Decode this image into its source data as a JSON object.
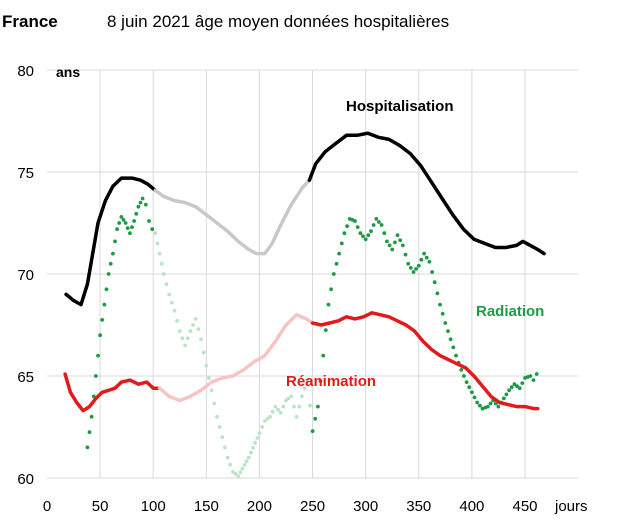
{
  "header": {
    "country": "France",
    "title": "8 juin 2021 âge moyen données hospitalières"
  },
  "chart_data": {
    "type": "line",
    "title": "8 juin 2021 âge moyen données hospitalières",
    "xlabel": "jours",
    "ylabel": "ans",
    "xlim": [
      0,
      500
    ],
    "ylim": [
      60,
      80
    ],
    "xticks": [
      0,
      50,
      100,
      150,
      200,
      250,
      300,
      350,
      400,
      450
    ],
    "yticks": [
      60,
      65,
      70,
      75,
      80
    ],
    "grid": true,
    "series": [
      {
        "name": "Hospitalisation",
        "color": "#000000",
        "faded_color": "#c8c8c8",
        "faded_range": [
          105,
          245
        ],
        "points": [
          [
            18,
            69.0
          ],
          [
            25,
            68.7
          ],
          [
            32,
            68.5
          ],
          [
            38,
            69.5
          ],
          [
            43,
            71.0
          ],
          [
            48,
            72.5
          ],
          [
            55,
            73.6
          ],
          [
            62,
            74.3
          ],
          [
            70,
            74.7
          ],
          [
            80,
            74.7
          ],
          [
            88,
            74.6
          ],
          [
            95,
            74.4
          ],
          [
            102,
            74.1
          ],
          [
            110,
            73.8
          ],
          [
            120,
            73.6
          ],
          [
            130,
            73.5
          ],
          [
            140,
            73.3
          ],
          [
            150,
            72.9
          ],
          [
            160,
            72.5
          ],
          [
            170,
            72.1
          ],
          [
            180,
            71.6
          ],
          [
            190,
            71.2
          ],
          [
            197,
            71.0
          ],
          [
            205,
            71.0
          ],
          [
            212,
            71.5
          ],
          [
            220,
            72.4
          ],
          [
            230,
            73.4
          ],
          [
            240,
            74.2
          ],
          [
            247,
            74.6
          ],
          [
            253,
            75.4
          ],
          [
            262,
            76.0
          ],
          [
            272,
            76.4
          ],
          [
            282,
            76.8
          ],
          [
            292,
            76.8
          ],
          [
            302,
            76.9
          ],
          [
            312,
            76.7
          ],
          [
            322,
            76.6
          ],
          [
            332,
            76.3
          ],
          [
            342,
            75.9
          ],
          [
            352,
            75.3
          ],
          [
            362,
            74.5
          ],
          [
            372,
            73.7
          ],
          [
            382,
            72.9
          ],
          [
            392,
            72.2
          ],
          [
            402,
            71.7
          ],
          [
            412,
            71.5
          ],
          [
            422,
            71.3
          ],
          [
            432,
            71.3
          ],
          [
            442,
            71.4
          ],
          [
            448,
            71.6
          ],
          [
            455,
            71.4
          ],
          [
            462,
            71.2
          ],
          [
            468,
            71.0
          ]
        ]
      },
      {
        "name": "Radiation",
        "color": "#1e9a47",
        "faded_color": "#b9e4c6",
        "faded_range": [
          100,
          250
        ],
        "dotted": true,
        "points": [
          [
            38,
            61.5
          ],
          [
            42,
            63.0
          ],
          [
            46,
            65.0
          ],
          [
            50,
            67.0
          ],
          [
            54,
            68.5
          ],
          [
            58,
            70.0
          ],
          [
            62,
            71.0
          ],
          [
            66,
            72.2
          ],
          [
            70,
            72.8
          ],
          [
            74,
            72.5
          ],
          [
            78,
            72.0
          ],
          [
            82,
            72.6
          ],
          [
            86,
            73.3
          ],
          [
            90,
            73.7
          ],
          [
            93,
            73.4
          ],
          [
            96,
            72.6
          ],
          [
            99,
            72.2
          ],
          [
            102,
            72.0
          ],
          [
            106,
            71.0
          ],
          [
            110,
            70.0
          ],
          [
            115,
            69.0
          ],
          [
            120,
            68.2
          ],
          [
            125,
            67.2
          ],
          [
            130,
            66.5
          ],
          [
            135,
            67.2
          ],
          [
            140,
            67.8
          ],
          [
            145,
            66.8
          ],
          [
            150,
            65.5
          ],
          [
            155,
            64.3
          ],
          [
            160,
            63.0
          ],
          [
            165,
            62.0
          ],
          [
            170,
            61.0
          ],
          [
            175,
            60.3
          ],
          [
            180,
            60.1
          ],
          [
            190,
            61.0
          ],
          [
            200,
            62.2
          ],
          [
            205,
            62.8
          ],
          [
            210,
            63.0
          ],
          [
            215,
            63.5
          ],
          [
            220,
            63.2
          ],
          [
            225,
            63.8
          ],
          [
            230,
            64.0
          ],
          [
            235,
            63.0
          ],
          [
            240,
            64.0
          ],
          [
            245,
            64.8
          ],
          [
            250,
            62.3
          ],
          [
            255,
            63.5
          ],
          [
            260,
            66.0
          ],
          [
            265,
            68.5
          ],
          [
            270,
            70.0
          ],
          [
            275,
            71.0
          ],
          [
            280,
            72.0
          ],
          [
            285,
            72.7
          ],
          [
            290,
            72.6
          ],
          [
            295,
            72.0
          ],
          [
            300,
            71.7
          ],
          [
            305,
            72.1
          ],
          [
            310,
            72.7
          ],
          [
            315,
            72.4
          ],
          [
            320,
            71.6
          ],
          [
            325,
            71.2
          ],
          [
            330,
            71.9
          ],
          [
            335,
            71.4
          ],
          [
            340,
            70.5
          ],
          [
            345,
            70.1
          ],
          [
            350,
            70.4
          ],
          [
            355,
            71.0
          ],
          [
            360,
            70.6
          ],
          [
            365,
            69.6
          ],
          [
            370,
            68.5
          ],
          [
            375,
            67.6
          ],
          [
            380,
            66.8
          ],
          [
            385,
            66.0
          ],
          [
            390,
            65.3
          ],
          [
            395,
            64.7
          ],
          [
            400,
            64.2
          ],
          [
            405,
            63.7
          ],
          [
            410,
            63.4
          ],
          [
            415,
            63.5
          ],
          [
            420,
            63.8
          ],
          [
            425,
            63.5
          ],
          [
            430,
            63.9
          ],
          [
            435,
            64.3
          ],
          [
            440,
            64.6
          ],
          [
            445,
            64.4
          ],
          [
            450,
            64.9
          ],
          [
            455,
            65.0
          ],
          [
            458,
            64.8
          ],
          [
            461,
            65.1
          ]
        ]
      },
      {
        "name": "Réanimation",
        "color": "#e01b1b",
        "faded_color": "#f7c4c4",
        "faded_range": [
          105,
          250
        ],
        "points": [
          [
            17,
            65.1
          ],
          [
            22,
            64.2
          ],
          [
            28,
            63.7
          ],
          [
            34,
            63.3
          ],
          [
            40,
            63.5
          ],
          [
            46,
            63.9
          ],
          [
            52,
            64.2
          ],
          [
            58,
            64.3
          ],
          [
            64,
            64.4
          ],
          [
            70,
            64.7
          ],
          [
            78,
            64.8
          ],
          [
            86,
            64.6
          ],
          [
            94,
            64.7
          ],
          [
            100,
            64.4
          ],
          [
            106,
            64.4
          ],
          [
            115,
            64.0
          ],
          [
            125,
            63.8
          ],
          [
            135,
            64.0
          ],
          [
            145,
            64.3
          ],
          [
            155,
            64.7
          ],
          [
            165,
            64.9
          ],
          [
            175,
            65.0
          ],
          [
            185,
            65.3
          ],
          [
            195,
            65.7
          ],
          [
            205,
            66.0
          ],
          [
            215,
            66.7
          ],
          [
            225,
            67.5
          ],
          [
            235,
            68.0
          ],
          [
            244,
            67.8
          ],
          [
            250,
            67.6
          ],
          [
            258,
            67.5
          ],
          [
            266,
            67.6
          ],
          [
            274,
            67.7
          ],
          [
            282,
            67.9
          ],
          [
            290,
            67.8
          ],
          [
            298,
            67.9
          ],
          [
            306,
            68.1
          ],
          [
            314,
            68.0
          ],
          [
            322,
            67.9
          ],
          [
            330,
            67.7
          ],
          [
            338,
            67.5
          ],
          [
            346,
            67.2
          ],
          [
            354,
            66.7
          ],
          [
            362,
            66.3
          ],
          [
            370,
            66.0
          ],
          [
            378,
            65.8
          ],
          [
            386,
            65.6
          ],
          [
            394,
            65.4
          ],
          [
            402,
            65.0
          ],
          [
            410,
            64.5
          ],
          [
            418,
            64.0
          ],
          [
            426,
            63.7
          ],
          [
            434,
            63.6
          ],
          [
            442,
            63.5
          ],
          [
            450,
            63.5
          ],
          [
            458,
            63.4
          ],
          [
            462,
            63.4
          ]
        ]
      }
    ],
    "annotations": [
      {
        "text": "Hospitalisation",
        "series": "Hospitalisation",
        "color": "#000000"
      },
      {
        "text": "Radiation",
        "series": "Radiation",
        "color": "#1e9a47"
      },
      {
        "text": "Réanimation",
        "series": "Réanimation",
        "color": "#e01b1b"
      }
    ]
  }
}
